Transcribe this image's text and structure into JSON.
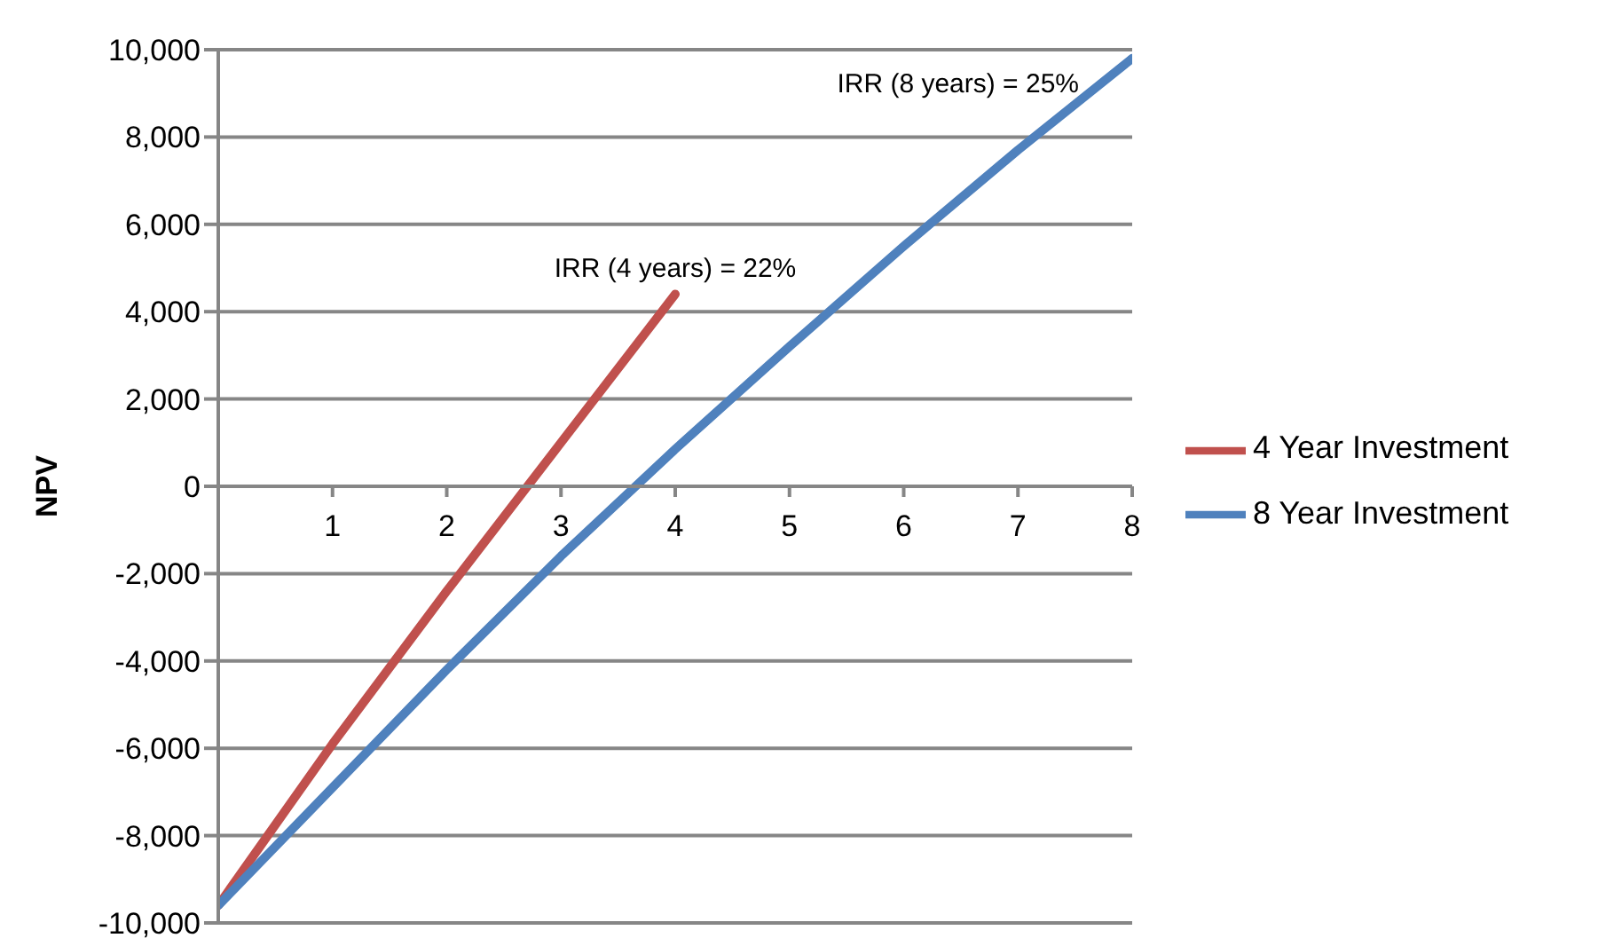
{
  "chart_data": {
    "type": "line",
    "ylabel": "NPV",
    "series": [
      {
        "name": "4 Year Investment",
        "color": "#c0504d",
        "x": [
          0,
          1,
          2,
          3,
          4
        ],
        "values": [
          -9600,
          -5900,
          -2400,
          1000,
          4400
        ]
      },
      {
        "name": "8 Year Investment",
        "color": "#4f81bd",
        "x": [
          0,
          1,
          2,
          3,
          4,
          5,
          6,
          7,
          8
        ],
        "values": [
          -9600,
          -6900,
          -4200,
          -1600,
          850,
          3200,
          5500,
          7700,
          9800
        ]
      }
    ],
    "xlim": [
      0,
      8
    ],
    "xticks": [
      1,
      2,
      3,
      4,
      5,
      6,
      7,
      8
    ],
    "ylim": [
      -10000,
      10000
    ],
    "yticks": [
      {
        "value": -10000,
        "label": "-10,000"
      },
      {
        "value": -8000,
        "label": "-8,000"
      },
      {
        "value": -6000,
        "label": "-6,000"
      },
      {
        "value": -4000,
        "label": "-4,000"
      },
      {
        "value": -2000,
        "label": "-2,000"
      },
      0,
      {
        "value": 2000,
        "label": "2,000"
      },
      {
        "value": 4000,
        "label": "4,000"
      },
      {
        "value": 6000,
        "label": "6,000"
      },
      {
        "value": 8000,
        "label": "8,000"
      },
      {
        "value": 10000,
        "label": "10,000"
      }
    ],
    "annotations": [
      {
        "text": "IRR (4 years) = 22%",
        "x": 4,
        "y": 4400
      },
      {
        "text": "IRR (8 years) = 25%",
        "x": 8,
        "y": 9800
      }
    ],
    "grid": "y",
    "legend": "right",
    "marker": "none",
    "line_style": "solid"
  }
}
